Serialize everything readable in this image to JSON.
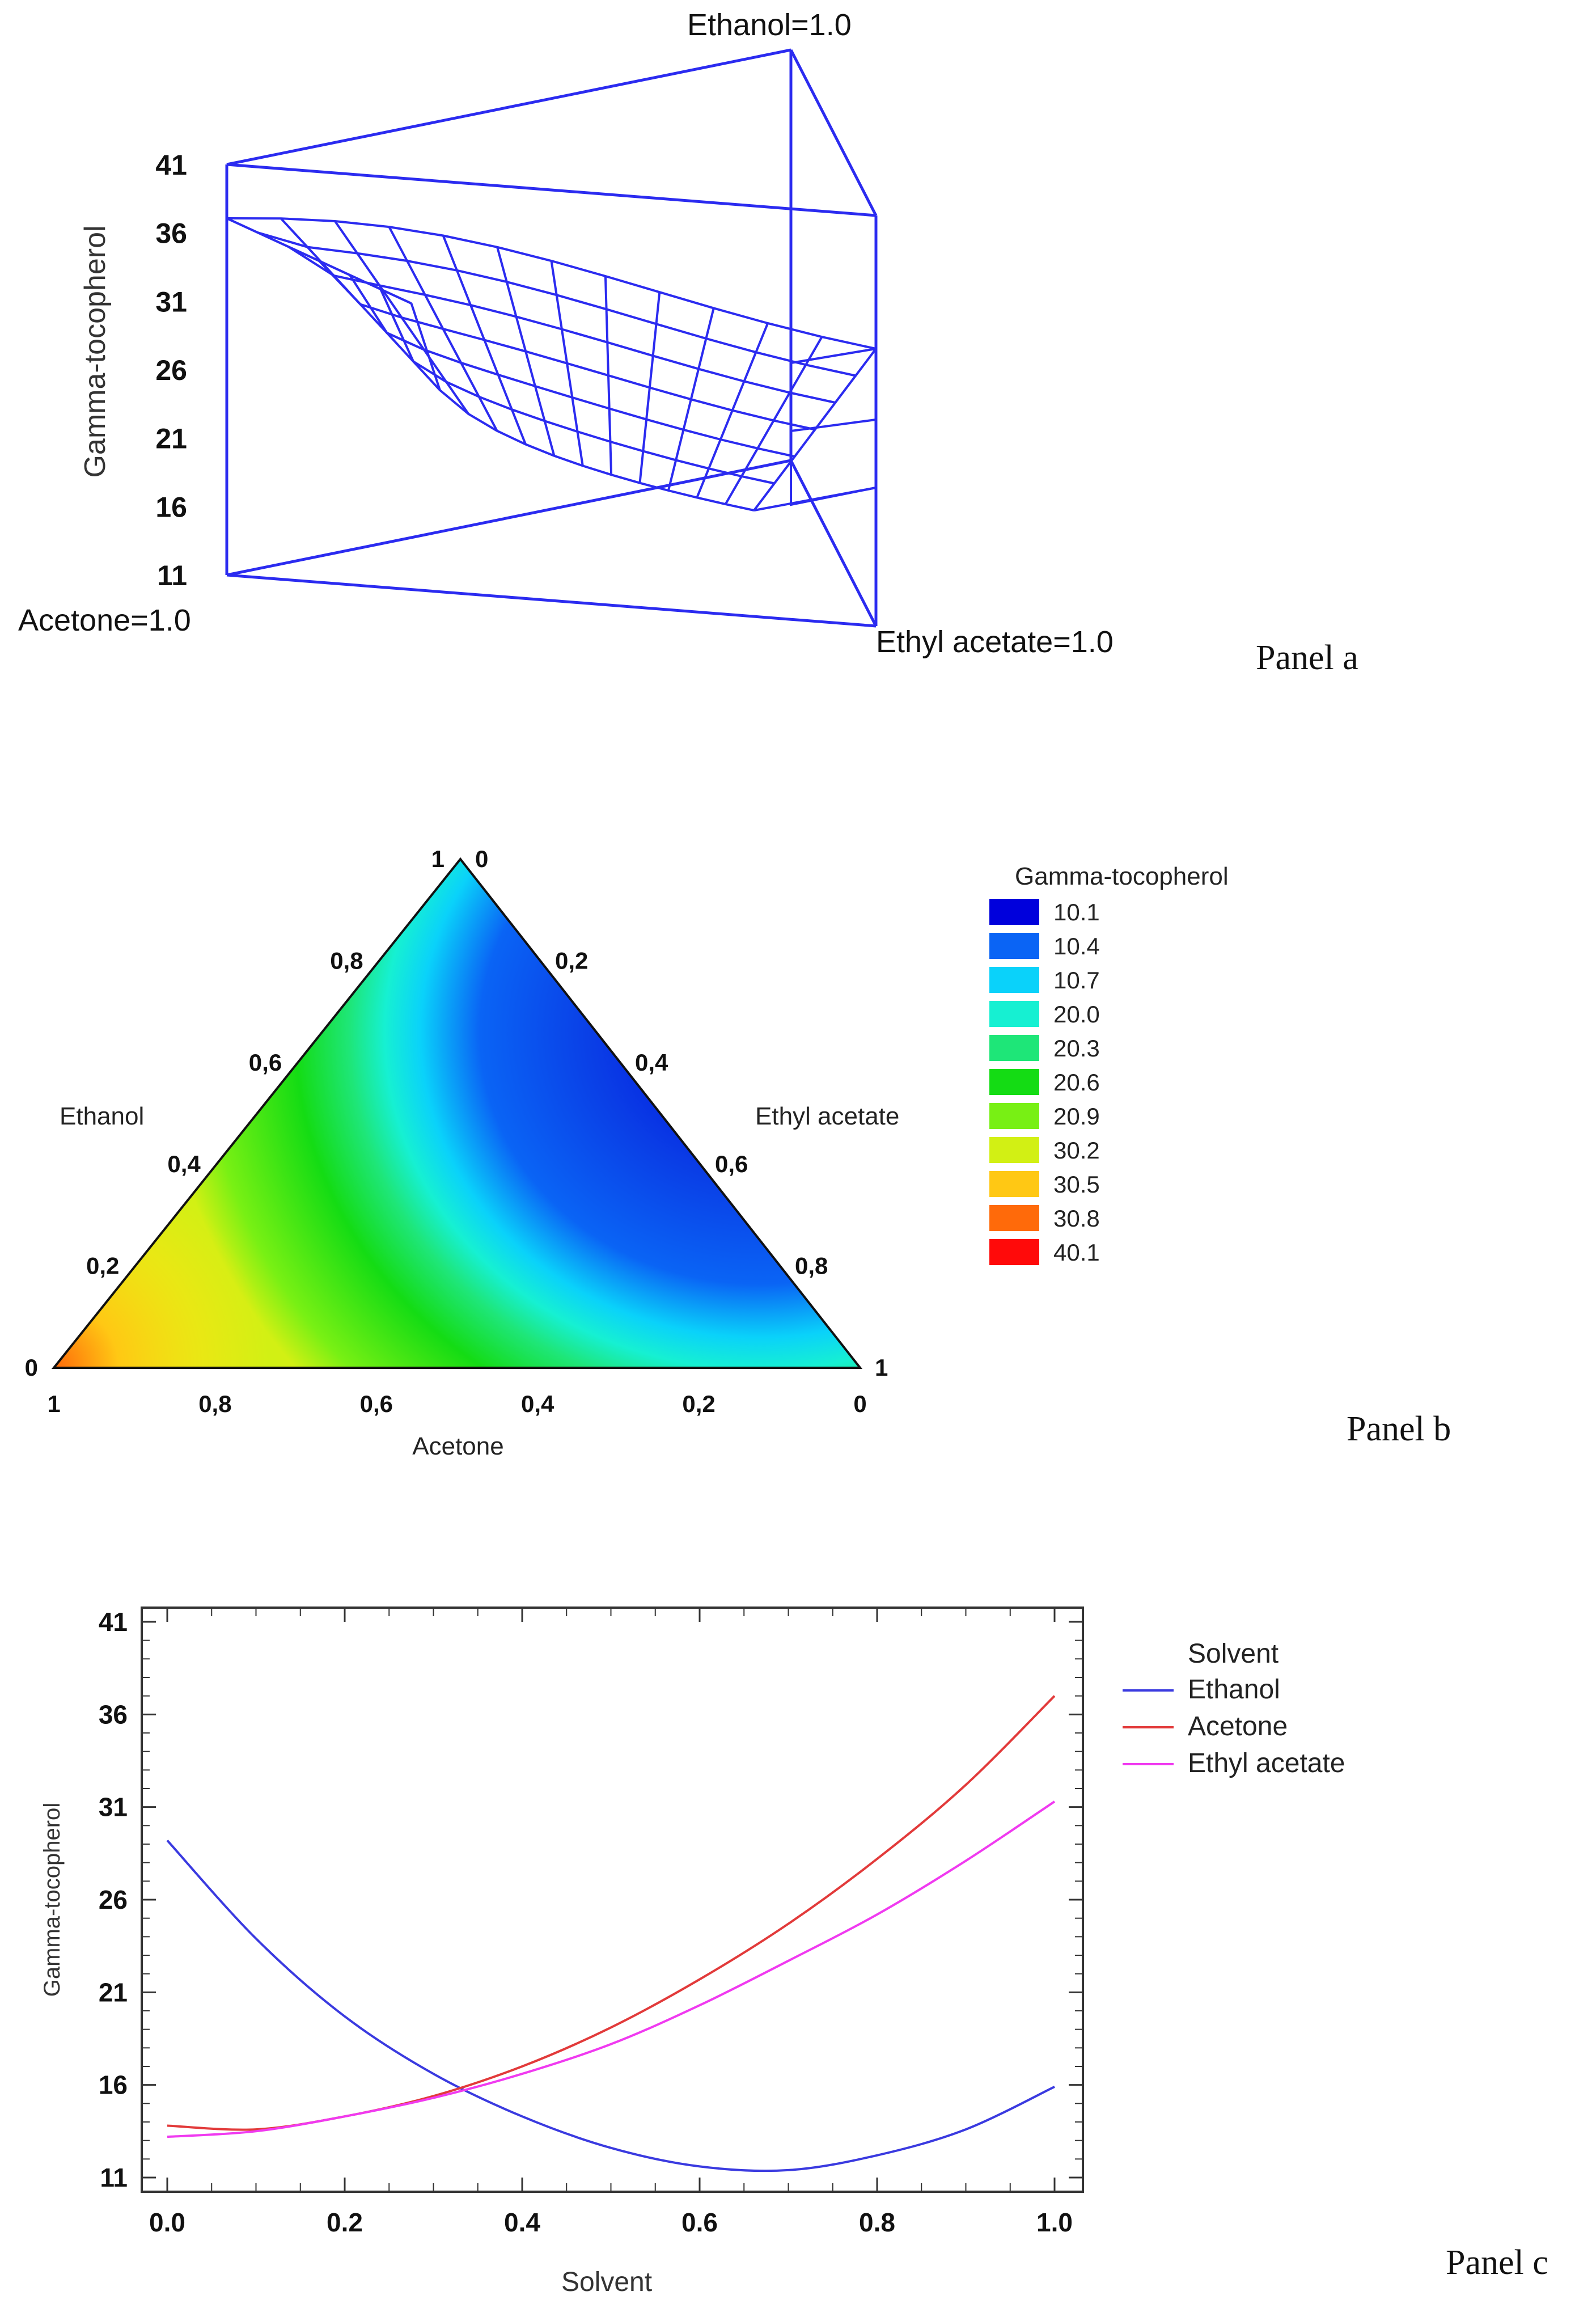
{
  "colors": {
    "wire": "#2b2bf0",
    "ethanol": "#3a3ae0",
    "acetone": "#e23a3a",
    "ethyl_acetate": "#f03af0"
  },
  "chart_data": [
    {
      "type": "surface3d",
      "panel_label": "Panel a",
      "zlabel": "Gamma-tocopherol",
      "zticks": [
        "41",
        "36",
        "31",
        "26",
        "21",
        "16",
        "11"
      ],
      "zlim": [
        11,
        41
      ],
      "vertices": {
        "top": "Ethanol=1.0",
        "left": "Acetone=1.0",
        "right": "Ethyl acetate=1.0"
      }
    },
    {
      "type": "heatmap",
      "panel_label": "Panel b",
      "legend_title": "Gamma-tocopherol",
      "legend_levels": [
        {
          "label": "10.1",
          "color": "#0000dc"
        },
        {
          "label": "10.4",
          "color": "#0a64f5"
        },
        {
          "label": "10.7",
          "color": "#0ad2fa"
        },
        {
          "label": "20.0",
          "color": "#16f0d2"
        },
        {
          "label": "20.3",
          "color": "#1ee678"
        },
        {
          "label": "20.6",
          "color": "#14dc14"
        },
        {
          "label": "20.9",
          "color": "#78f014"
        },
        {
          "label": "30.2",
          "color": "#d2f014"
        },
        {
          "label": "30.5",
          "color": "#ffc814"
        },
        {
          "label": "30.8",
          "color": "#ff6a0a"
        },
        {
          "label": "40.1",
          "color": "#ff0a0a"
        }
      ],
      "axes": {
        "left": "Ethanol",
        "right": "Ethyl acetate",
        "bottom": "Acetone"
      },
      "left_ticks": [
        "0",
        "0,2",
        "0,4",
        "0,6",
        "0,8",
        "1"
      ],
      "right_ticks": [
        "0",
        "0,2",
        "0,4",
        "0,6",
        "0,8",
        "1"
      ],
      "bottom_ticks": [
        "1",
        "0,8",
        "0,6",
        "0,4",
        "0,2",
        "0"
      ]
    },
    {
      "type": "line",
      "panel_label": "Panel c",
      "xlabel": "Solvent",
      "ylabel": "Gamma-tocopherol",
      "xlim": [
        0,
        1
      ],
      "ylim": [
        10,
        42
      ],
      "xticks": [
        "0.0",
        "0.2",
        "0.4",
        "0.6",
        "0.8",
        "1.0"
      ],
      "yticks": [
        "11",
        "16",
        "21",
        "26",
        "31",
        "36",
        "41"
      ],
      "legend_title": "Solvent",
      "x": [
        0.0,
        0.1,
        0.2,
        0.3,
        0.4,
        0.5,
        0.6,
        0.7,
        0.8,
        0.9,
        1.0
      ],
      "series": [
        {
          "name": "Ethanol",
          "values": [
            29.2,
            23.9,
            19.7,
            16.6,
            14.3,
            12.6,
            11.6,
            11.4,
            12.2,
            13.6,
            15.9
          ]
        },
        {
          "name": "Acetone",
          "values": [
            13.8,
            13.6,
            14.3,
            15.4,
            17.0,
            19.1,
            21.7,
            24.7,
            28.2,
            32.2,
            37.0
          ]
        },
        {
          "name": "Ethyl acetate",
          "values": [
            13.2,
            13.5,
            14.3,
            15.3,
            16.6,
            18.2,
            20.3,
            22.7,
            25.2,
            28.1,
            31.3
          ]
        }
      ]
    }
  ]
}
